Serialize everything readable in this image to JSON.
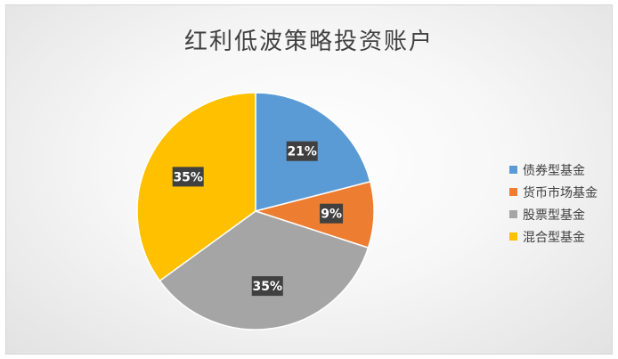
{
  "chart_data": {
    "type": "pie",
    "title": "红利低波策略投资账户",
    "categories": [
      "债券型基金",
      "货币市场基金",
      "股票型基金",
      "混合型基金"
    ],
    "values": [
      21,
      9,
      35,
      35
    ],
    "data_labels": [
      "21%",
      "9%",
      "35%",
      "35%"
    ],
    "colors": [
      "#5B9BD5",
      "#ED7D31",
      "#A5A5A5",
      "#FFC000"
    ],
    "legend_position": "right"
  }
}
